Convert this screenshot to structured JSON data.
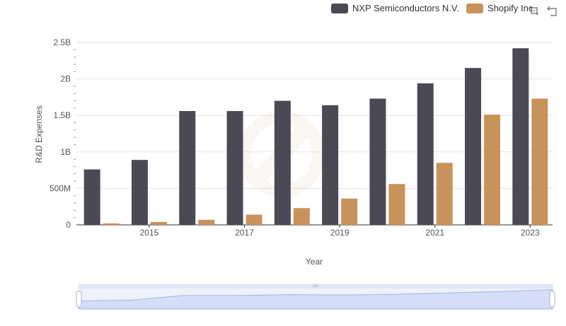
{
  "legend": {
    "items": [
      {
        "label": "NXP Semiconductors N.V.",
        "color": "#4a4955"
      },
      {
        "label": "Shopify Inc.",
        "color": "#c8925b"
      }
    ]
  },
  "toolbar": {
    "icons": [
      "zoom-icon",
      "restore-icon"
    ]
  },
  "chart_data": {
    "type": "bar",
    "title": "",
    "xlabel": "Year",
    "ylabel": "R&D Expenses",
    "categories": [
      "2014",
      "2015",
      "2016",
      "2017",
      "2018",
      "2019",
      "2020",
      "2021",
      "2022",
      "2023"
    ],
    "x_tick_labels": [
      "2015",
      "2017",
      "2019",
      "2021",
      "2023"
    ],
    "y_tick_labels": [
      "0",
      "500M",
      "1B",
      "1.5B",
      "2B",
      "2.5B"
    ],
    "ylim": [
      0,
      2500000000
    ],
    "grid": true,
    "legend_position": "top-right",
    "series": [
      {
        "name": "NXP Semiconductors N.V.",
        "color": "#4a4955",
        "values": [
          760000000,
          890000000,
          1560000000,
          1560000000,
          1700000000,
          1640000000,
          1730000000,
          1940000000,
          2150000000,
          2420000000
        ]
      },
      {
        "name": "Shopify Inc.",
        "color": "#c8925b",
        "values": [
          20000000,
          40000000,
          70000000,
          140000000,
          230000000,
          360000000,
          560000000,
          850000000,
          1510000000,
          1730000000
        ]
      }
    ]
  }
}
